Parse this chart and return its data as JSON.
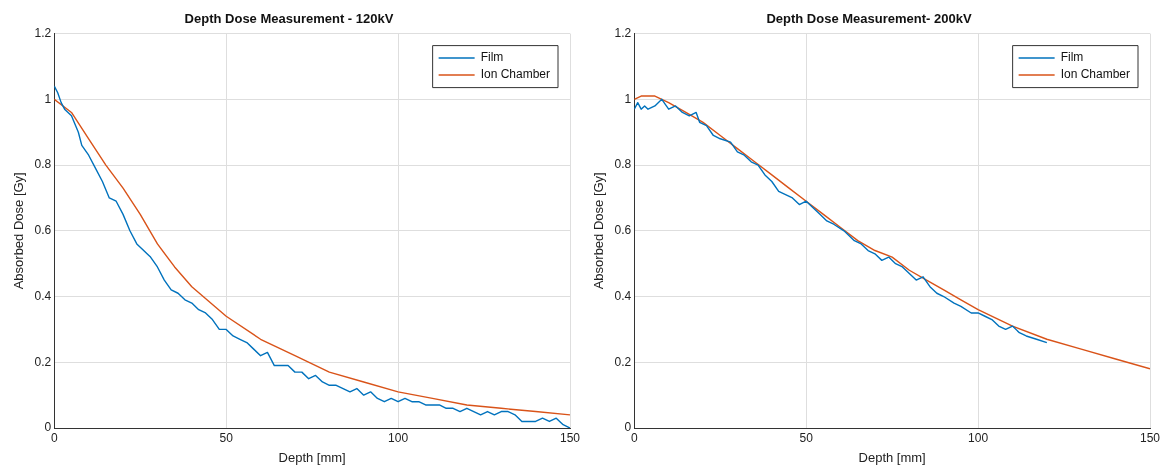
{
  "chart_data": [
    {
      "type": "line",
      "title": "Depth Dose Measurement - 120kV",
      "xlabel": "Depth [mm]",
      "ylabel": "Absorbed Dose [Gy]",
      "xlim": [
        0,
        150
      ],
      "xticks": [
        0,
        50,
        100,
        150
      ],
      "ylim": [
        0,
        1.2
      ],
      "yticks": [
        0,
        0.2,
        0.4,
        0.6,
        0.8,
        1,
        1.2
      ],
      "grid": true,
      "legend": "top right",
      "marker": "none",
      "line_style": "solid",
      "series": [
        {
          "name": "Film",
          "color": "#0072bd",
          "x": [
            0,
            1,
            2,
            3,
            5,
            7,
            8,
            10,
            12,
            14,
            16,
            18,
            20,
            22,
            24,
            26,
            28,
            30,
            32,
            34,
            36,
            38,
            40,
            42,
            44,
            46,
            48,
            50,
            52,
            54,
            56,
            58,
            60,
            62,
            64,
            66,
            68,
            70,
            72,
            74,
            76,
            78,
            80,
            82,
            84,
            86,
            88,
            90,
            92,
            94,
            96,
            98,
            100,
            102,
            104,
            106,
            108,
            110,
            112,
            114,
            116,
            118,
            120,
            122,
            124,
            126,
            128,
            130,
            132,
            134,
            136,
            138,
            140,
            142,
            144,
            146,
            148,
            150
          ],
          "values": [
            1.04,
            1.02,
            0.99,
            0.97,
            0.95,
            0.9,
            0.86,
            0.83,
            0.79,
            0.75,
            0.7,
            0.69,
            0.65,
            0.6,
            0.56,
            0.54,
            0.52,
            0.49,
            0.45,
            0.42,
            0.41,
            0.39,
            0.38,
            0.36,
            0.35,
            0.33,
            0.3,
            0.3,
            0.28,
            0.27,
            0.26,
            0.24,
            0.22,
            0.23,
            0.19,
            0.19,
            0.19,
            0.17,
            0.17,
            0.15,
            0.16,
            0.14,
            0.13,
            0.13,
            0.12,
            0.11,
            0.12,
            0.1,
            0.11,
            0.09,
            0.08,
            0.09,
            0.08,
            0.09,
            0.08,
            0.08,
            0.07,
            0.07,
            0.07,
            0.06,
            0.06,
            0.05,
            0.06,
            0.05,
            0.04,
            0.05,
            0.04,
            0.05,
            0.05,
            0.04,
            0.02,
            0.02,
            0.02,
            0.03,
            0.02,
            0.03,
            0.01,
            0
          ]
        },
        {
          "name": "Ion Chamber",
          "color": "#d95319",
          "x": [
            0,
            5,
            10,
            15,
            20,
            25,
            30,
            35,
            40,
            50,
            60,
            70,
            80,
            90,
            100,
            110,
            120,
            130,
            140,
            150
          ],
          "values": [
            1,
            0.96,
            0.88,
            0.8,
            0.73,
            0.65,
            0.56,
            0.49,
            0.43,
            0.34,
            0.27,
            0.22,
            0.17,
            0.14,
            0.11,
            0.09,
            0.07,
            0.06,
            0.05,
            0.04
          ]
        }
      ]
    },
    {
      "type": "line",
      "title": "Depth Dose Measurement- 200kV",
      "xlabel": "Depth [mm]",
      "ylabel": "Absorbed Dose [Gy]",
      "xlim": [
        0,
        150
      ],
      "xticks": [
        0,
        50,
        100,
        150
      ],
      "ylim": [
        0,
        1.2
      ],
      "yticks": [
        0,
        0.2,
        0.4,
        0.6,
        0.8,
        1,
        1.2
      ],
      "grid": true,
      "legend": "top right",
      "marker": "none",
      "line_style": "solid",
      "series": [
        {
          "name": "Film",
          "color": "#0072bd",
          "x": [
            0,
            1,
            2,
            3,
            4,
            6,
            8,
            10,
            12,
            14,
            16,
            18,
            19,
            21,
            23,
            25,
            28,
            30,
            32,
            34,
            36,
            38,
            40,
            42,
            44,
            46,
            48,
            50,
            52,
            54,
            56,
            58,
            61,
            64,
            66,
            68,
            70,
            72,
            74,
            76,
            78,
            80,
            82,
            84,
            86,
            88,
            90,
            93,
            95,
            98,
            100,
            102,
            104,
            106,
            108,
            110,
            112,
            114,
            117,
            120
          ],
          "values": [
            0.97,
            0.99,
            0.97,
            0.98,
            0.97,
            0.98,
            1,
            0.97,
            0.98,
            0.96,
            0.95,
            0.96,
            0.93,
            0.92,
            0.89,
            0.88,
            0.87,
            0.84,
            0.83,
            0.81,
            0.8,
            0.77,
            0.75,
            0.72,
            0.71,
            0.7,
            0.68,
            0.69,
            0.67,
            0.65,
            0.63,
            0.62,
            0.6,
            0.57,
            0.56,
            0.54,
            0.53,
            0.51,
            0.52,
            0.5,
            0.49,
            0.47,
            0.45,
            0.46,
            0.43,
            0.41,
            0.4,
            0.38,
            0.37,
            0.35,
            0.35,
            0.34,
            0.33,
            0.31,
            0.3,
            0.31,
            0.29,
            0.28,
            0.27,
            0.26
          ]
        },
        {
          "name": "Ion Chamber",
          "color": "#d95319",
          "x": [
            0,
            2,
            6,
            10,
            15,
            20,
            25,
            30,
            35,
            40,
            45,
            50,
            55,
            60,
            65,
            70,
            75,
            80,
            85,
            90,
            95,
            100,
            110,
            120,
            130,
            140,
            150
          ],
          "values": [
            1,
            1.01,
            1.01,
            0.99,
            0.96,
            0.93,
            0.89,
            0.85,
            0.81,
            0.77,
            0.73,
            0.69,
            0.65,
            0.61,
            0.57,
            0.54,
            0.52,
            0.48,
            0.45,
            0.42,
            0.39,
            0.36,
            0.31,
            0.27,
            0.24,
            0.21,
            0.18
          ]
        }
      ]
    }
  ]
}
